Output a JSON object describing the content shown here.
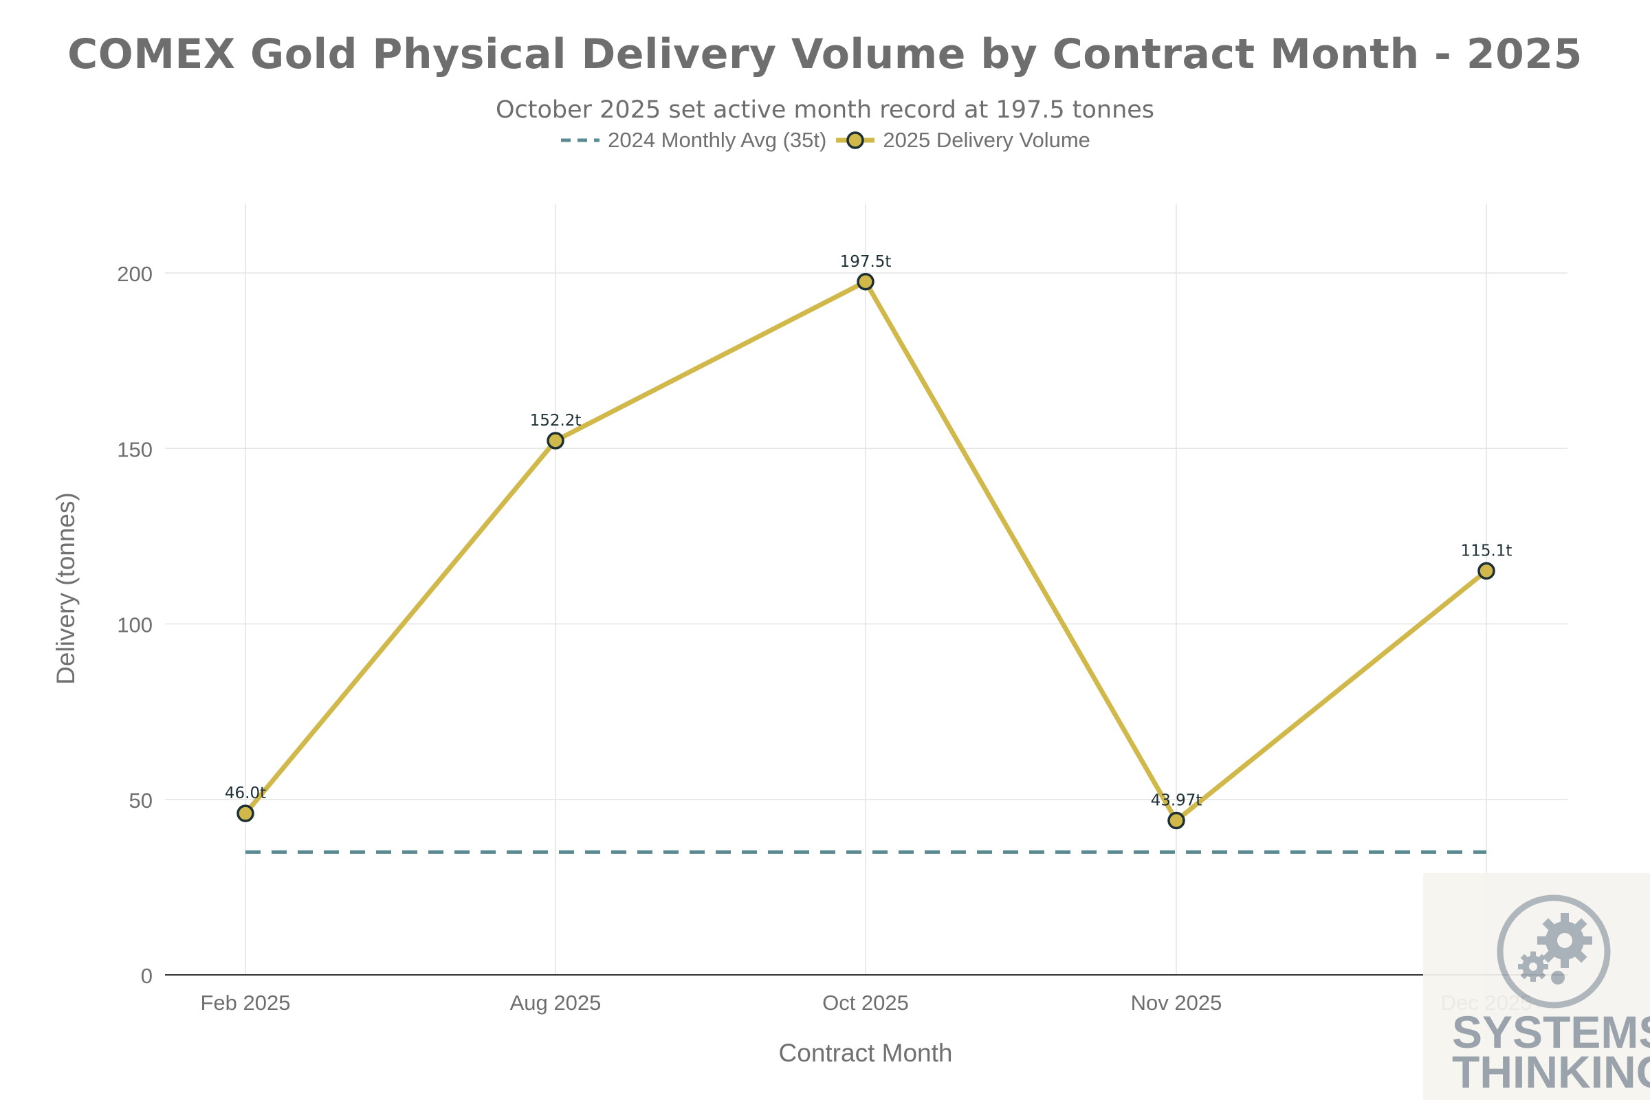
{
  "chart_data": {
    "type": "line",
    "title": "COMEX Gold Physical Delivery Volume by Contract Month - 2025",
    "subtitle": "October 2025 set active month record at 197.5 tonnes",
    "xlabel": "Contract Month",
    "ylabel": "Delivery (tonnes)",
    "categories": [
      "Feb 2025",
      "Aug 2025",
      "Oct 2025",
      "Nov 2025",
      "Dec 2025"
    ],
    "ylim": [
      0,
      220
    ],
    "yticks": [
      0,
      50,
      100,
      150,
      200
    ],
    "grid": true,
    "legend_position": "top-center",
    "series": [
      {
        "name": "2025 Delivery Volume",
        "values": [
          46.0,
          152.2,
          197.5,
          43.97,
          115.1
        ],
        "labels": [
          "46.0t",
          "152.2t",
          "197.5t",
          "43.97t",
          "115.1t"
        ],
        "color": "#d1b84a",
        "marker_edge_color": "#1c2f35"
      },
      {
        "name": "2024 Monthly Avg (35t)",
        "values": [
          35,
          35,
          35,
          35,
          35
        ],
        "style": "dashed",
        "color": "#5a8a91"
      }
    ]
  },
  "watermark": {
    "line1": "SYSTEMS",
    "line2": "THINKING",
    "icon": "gears-icon"
  }
}
